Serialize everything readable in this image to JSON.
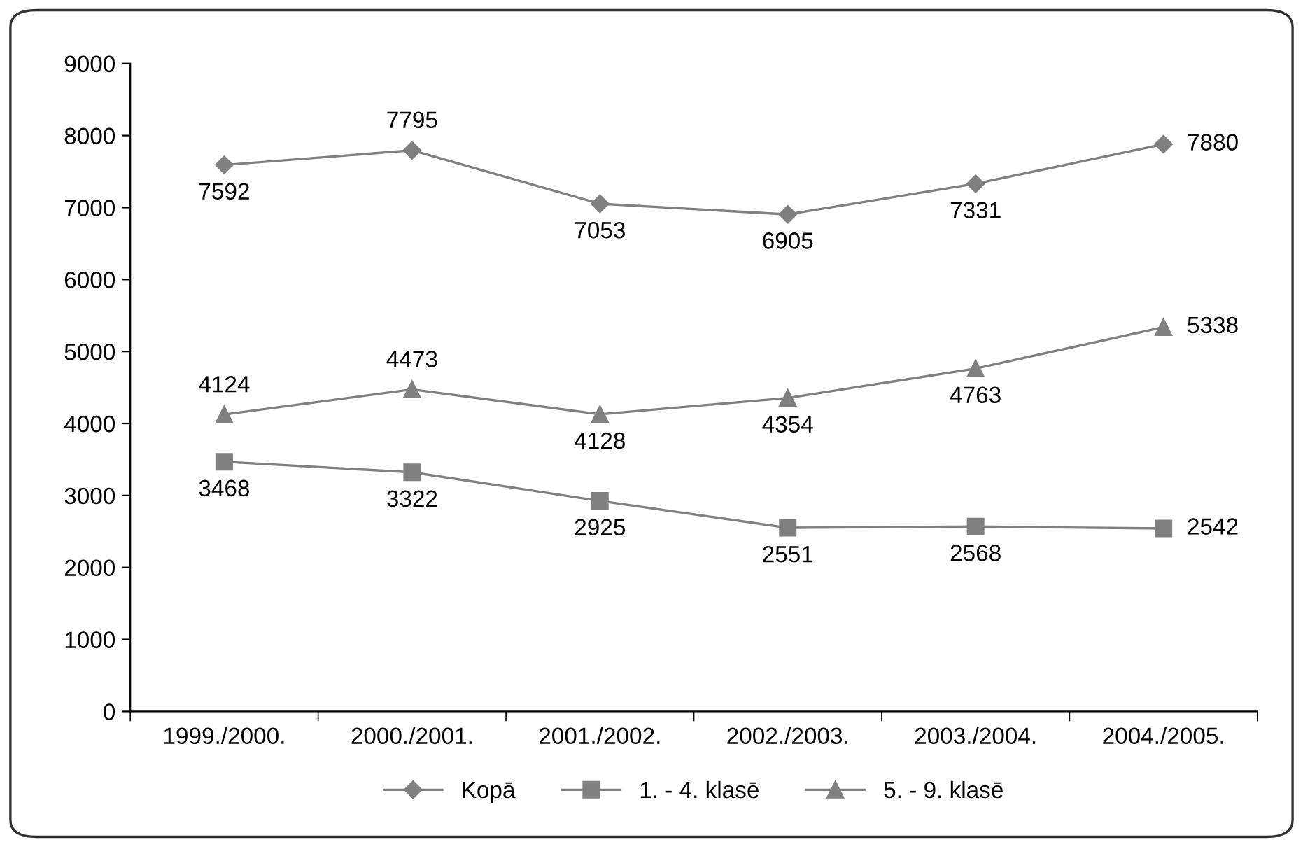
{
  "chart_data": {
    "type": "line",
    "categories": [
      "1999./2000.",
      "2000./2001.",
      "2001./2002.",
      "2002./2003.",
      "2003./2004.",
      "2004./2005."
    ],
    "series": [
      {
        "name": "Kopā",
        "color": "#808080",
        "marker": "diamond",
        "values": [
          7592,
          7795,
          7053,
          6905,
          7331,
          7880
        ]
      },
      {
        "name": "1. - 4. klasē",
        "color": "#808080",
        "marker": "square",
        "values": [
          3468,
          3322,
          2925,
          2551,
          2568,
          2542
        ]
      },
      {
        "name": "5. - 9. klasē",
        "color": "#808080",
        "marker": "triangle",
        "values": [
          4124,
          4473,
          4128,
          4354,
          4763,
          5338
        ]
      }
    ],
    "ylim": [
      0,
      9000
    ],
    "yticks": [
      0,
      1000,
      2000,
      3000,
      4000,
      5000,
      6000,
      7000,
      8000,
      9000
    ],
    "data_labels": true,
    "grid": false,
    "legend": "bottom",
    "line_style": "solid"
  }
}
